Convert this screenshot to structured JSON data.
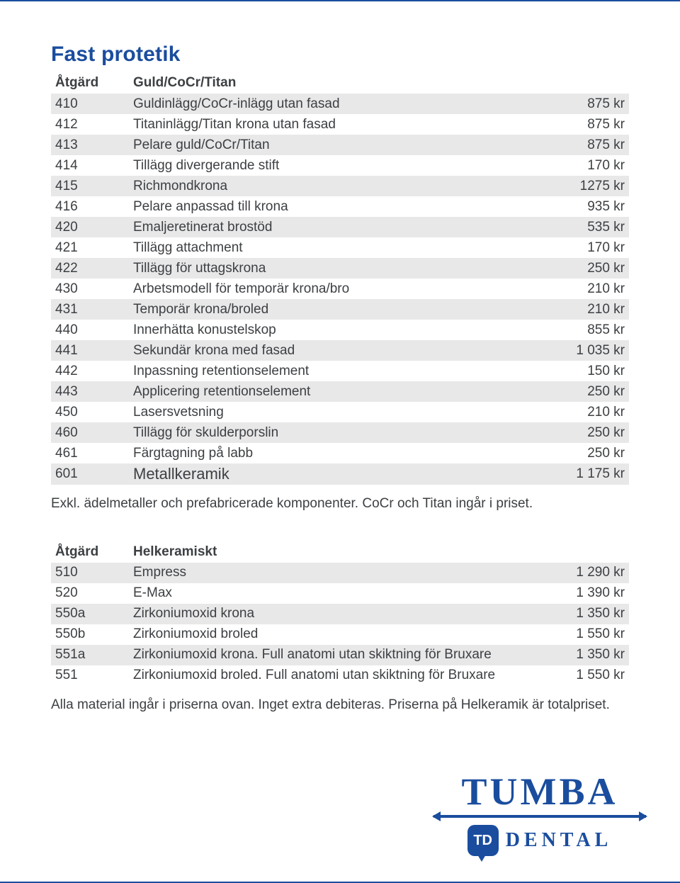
{
  "colors": {
    "accent": "#1a4d9e",
    "text": "#3d4043",
    "row_alt_bg": "#e8e8e9",
    "page_bg": "#ffffff"
  },
  "typography": {
    "title_fontsize": 30,
    "header_fontsize": 19,
    "row_fontsize": 19,
    "big_row_fontsize": 22,
    "note_fontsize": 19
  },
  "title": "Fast protetik",
  "table1": {
    "header": {
      "col1": "Åtgärd",
      "col2": "Guld/CoCr/Titan"
    },
    "col_widths": {
      "c1": 110,
      "c3": 90
    },
    "rows": [
      {
        "code": "410",
        "desc": "Guldinlägg/CoCr-inlägg utan fasad",
        "price": "875 kr"
      },
      {
        "code": "412",
        "desc": "Titaninlägg/Titan krona utan fasad",
        "price": "875 kr"
      },
      {
        "code": "413",
        "desc": "Pelare guld/CoCr/Titan",
        "price": "875 kr"
      },
      {
        "code": "414",
        "desc": "Tillägg divergerande stift",
        "price": "170 kr"
      },
      {
        "code": "415",
        "desc": "Richmondkrona",
        "price": "1275 kr"
      },
      {
        "code": "416",
        "desc": "Pelare anpassad till krona",
        "price": "935 kr"
      },
      {
        "code": "420",
        "desc": "Emaljeretinerat brostöd",
        "price": "535 kr"
      },
      {
        "code": "421",
        "desc": "Tillägg attachment",
        "price": "170 kr"
      },
      {
        "code": "422",
        "desc": "Tillägg för uttagskrona",
        "price": "250 kr"
      },
      {
        "code": "430",
        "desc": "Arbetsmodell för temporär krona/bro",
        "price": "210 kr"
      },
      {
        "code": "431",
        "desc": "Temporär krona/broled",
        "price": "210 kr"
      },
      {
        "code": "440",
        "desc": "Innerhätta  konustelskop",
        "price": "855 kr"
      },
      {
        "code": "441",
        "desc": "Sekundär krona med fasad",
        "price": "1 035 kr"
      },
      {
        "code": "442",
        "desc": "Inpassning retentionselement",
        "price": "150 kr"
      },
      {
        "code": "443",
        "desc": "Applicering retentionselement",
        "price": "250 kr"
      },
      {
        "code": "450",
        "desc": "Lasersvetsning",
        "price": "210 kr"
      },
      {
        "code": "460",
        "desc": "Tillägg för skulderporslin",
        "price": "250 kr"
      },
      {
        "code": "461",
        "desc": "Färgtagning på labb",
        "price": "250 kr"
      },
      {
        "code": "601",
        "desc": "Metallkeramik",
        "price": "1 175 kr",
        "big": true
      }
    ]
  },
  "note1": "Exkl. ädelmetaller och prefabricerade komponenter. CoCr och Titan ingår i priset.",
  "table2": {
    "header": {
      "col1": "Åtgärd",
      "col2": "Helkeramiskt"
    },
    "rows": [
      {
        "code": "510",
        "desc": "Empress",
        "price": "1 290 kr"
      },
      {
        "code": "520",
        "desc": "E-Max",
        "price": "1 390 kr"
      },
      {
        "code": "550a",
        "desc": "Zirkoniumoxid krona",
        "price": "1 350 kr"
      },
      {
        "code": "550b",
        "desc": "Zirkoniumoxid broled",
        "price": "1 550 kr"
      },
      {
        "code": "551a",
        "desc": "Zirkoniumoxid krona. Full anatomi utan skiktning för Bruxare",
        "price": "1 350 kr"
      },
      {
        "code": "551",
        "desc": "Zirkoniumoxid broled. Full anatomi utan skiktning för Bruxare",
        "price": "1 550 kr"
      }
    ]
  },
  "note2": "Alla material ingår i priserna ovan. Inget extra debiteras. Priserna på Helkeramik är totalpriset.",
  "logo": {
    "brand": "TUMBA",
    "badge": "TD",
    "subtitle": "DENTAL"
  }
}
